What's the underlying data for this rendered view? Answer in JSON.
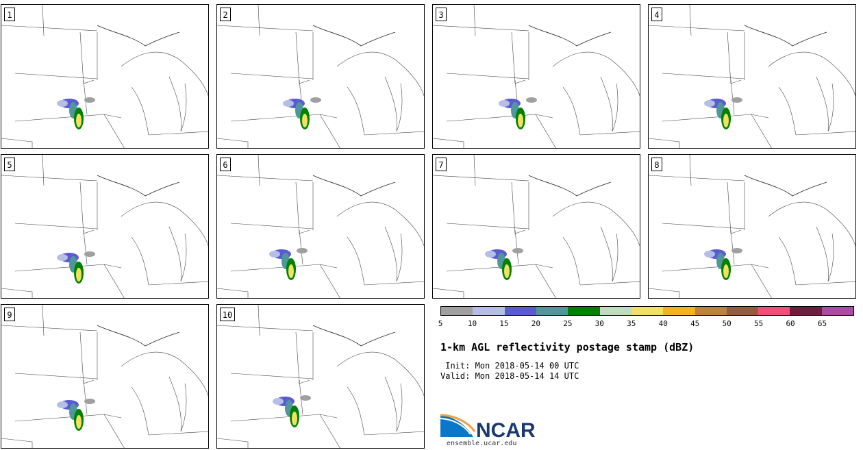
{
  "panels": [
    {
      "label": "1"
    },
    {
      "label": "2"
    },
    {
      "label": "3"
    },
    {
      "label": "4"
    },
    {
      "label": "5"
    },
    {
      "label": "6"
    },
    {
      "label": "7"
    },
    {
      "label": "8"
    },
    {
      "label": "9"
    },
    {
      "label": "10"
    }
  ],
  "colorbar": {
    "colors": [
      "#a0a0a0",
      "#b4bee6",
      "#5a5ad2",
      "#50969b",
      "#008200",
      "#bedcbe",
      "#f0e164",
      "#f0b41e",
      "#be823c",
      "#965a3c",
      "#f05078",
      "#6e1e3c",
      "#aa4ba5"
    ],
    "ticks": [
      "5",
      "10",
      "15",
      "20",
      "25",
      "30",
      "35",
      "40",
      "45",
      "50",
      "55",
      "60",
      "65"
    ]
  },
  "title": "1-km AGL reflectivity postage stamp (dBZ)",
  "init": " Init: Mon 2018-05-14 00 UTC",
  "valid": "Valid: Mon 2018-05-14 14 UTC",
  "logo": {
    "text": "NCAR",
    "site": "ensemble.ucar.edu",
    "brand_color": "#1a3a6e",
    "accent_color": "#0a78c8"
  }
}
